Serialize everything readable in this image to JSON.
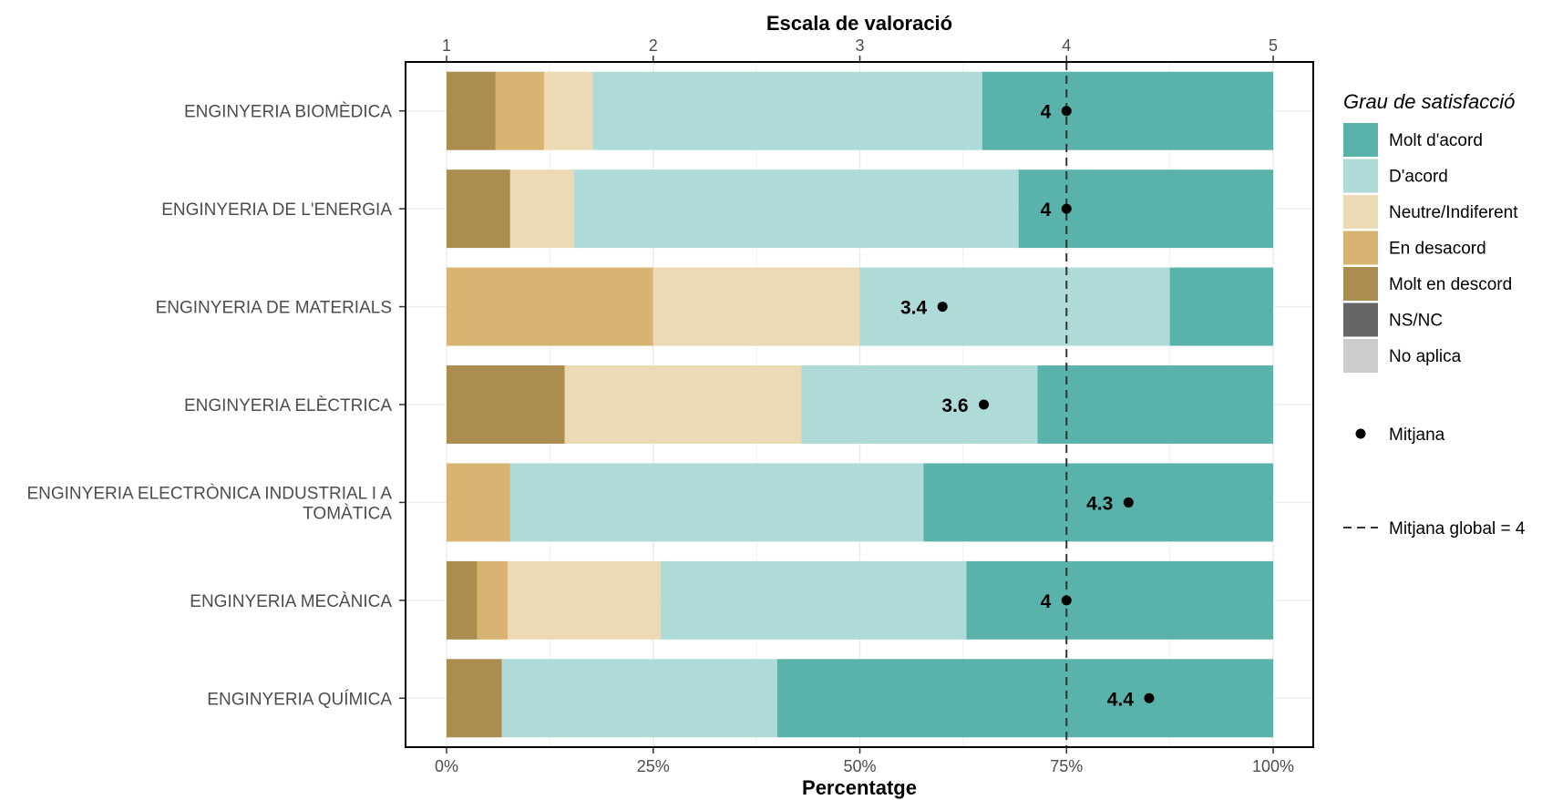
{
  "chart_data": {
    "type": "bar",
    "orientation": "horizontal",
    "stacked": "percent",
    "title": "",
    "xlabel": "Percentatge",
    "x2label": "Escala de valoració",
    "x_ticks": [
      "0%",
      "25%",
      "50%",
      "75%",
      "100%"
    ],
    "x2_ticks": [
      "1",
      "2",
      "3",
      "4",
      "5"
    ],
    "xlim": [
      0,
      100
    ],
    "x2lim": [
      1,
      5
    ],
    "grid": true,
    "categories": [
      "ENGINYERIA BIOMÈDICA",
      "ENGINYERIA DE L'ENERGIA",
      "ENGINYERIA DE MATERIALS",
      "ENGINYERIA ELÈCTRICA",
      "ENGINYERIA ELECTRÒNICA INDUSTRIAL I AUTOMÀTICA",
      "ENGINYERIA MECÀNICA",
      "ENGINYERIA QUÍMICA"
    ],
    "series": [
      {
        "name": "Molt en descord",
        "color": "#ab8d4f",
        "values": [
          5.9,
          7.7,
          0,
          14.3,
          0,
          3.7,
          6.7
        ]
      },
      {
        "name": "En desacord",
        "color": "#d8b372",
        "values": [
          5.9,
          0,
          25,
          0,
          7.7,
          3.7,
          0
        ]
      },
      {
        "name": "Neutre/Indiferent",
        "color": "#ebdab3",
        "values": [
          5.9,
          7.7,
          25,
          28.6,
          0,
          18.5,
          0
        ]
      },
      {
        "name": "D'acord",
        "color": "#aedad7",
        "values": [
          47.1,
          53.8,
          37.5,
          28.6,
          50,
          37.0,
          33.3
        ]
      },
      {
        "name": "Molt d'acord",
        "color": "#5ab3aa",
        "values": [
          35.2,
          30.8,
          12.5,
          28.5,
          42.3,
          37.1,
          60
        ]
      },
      {
        "name": "NS/NC",
        "color": "#666666",
        "values": [
          0,
          0,
          0,
          0,
          0,
          0,
          0
        ]
      },
      {
        "name": "No aplica",
        "color": "#cccccc",
        "values": [
          0,
          0,
          0,
          0,
          0,
          0,
          0
        ]
      }
    ],
    "means": [
      4,
      4,
      3.4,
      3.6,
      4.3,
      4,
      4.4
    ],
    "mean_labels": [
      "4",
      "4",
      "3.4",
      "3.6",
      "4.3",
      "4",
      "4.4"
    ],
    "global_mean": 4,
    "legend": {
      "title": "Grau de satisfacció",
      "position": "right",
      "items": [
        "Molt d'acord",
        "D'acord",
        "Neutre/Indiferent",
        "En desacord",
        "Molt en descord",
        "NS/NC",
        "No aplica"
      ],
      "mean_label": "Mitjana",
      "global_label": "Mitjana global =  4"
    }
  }
}
